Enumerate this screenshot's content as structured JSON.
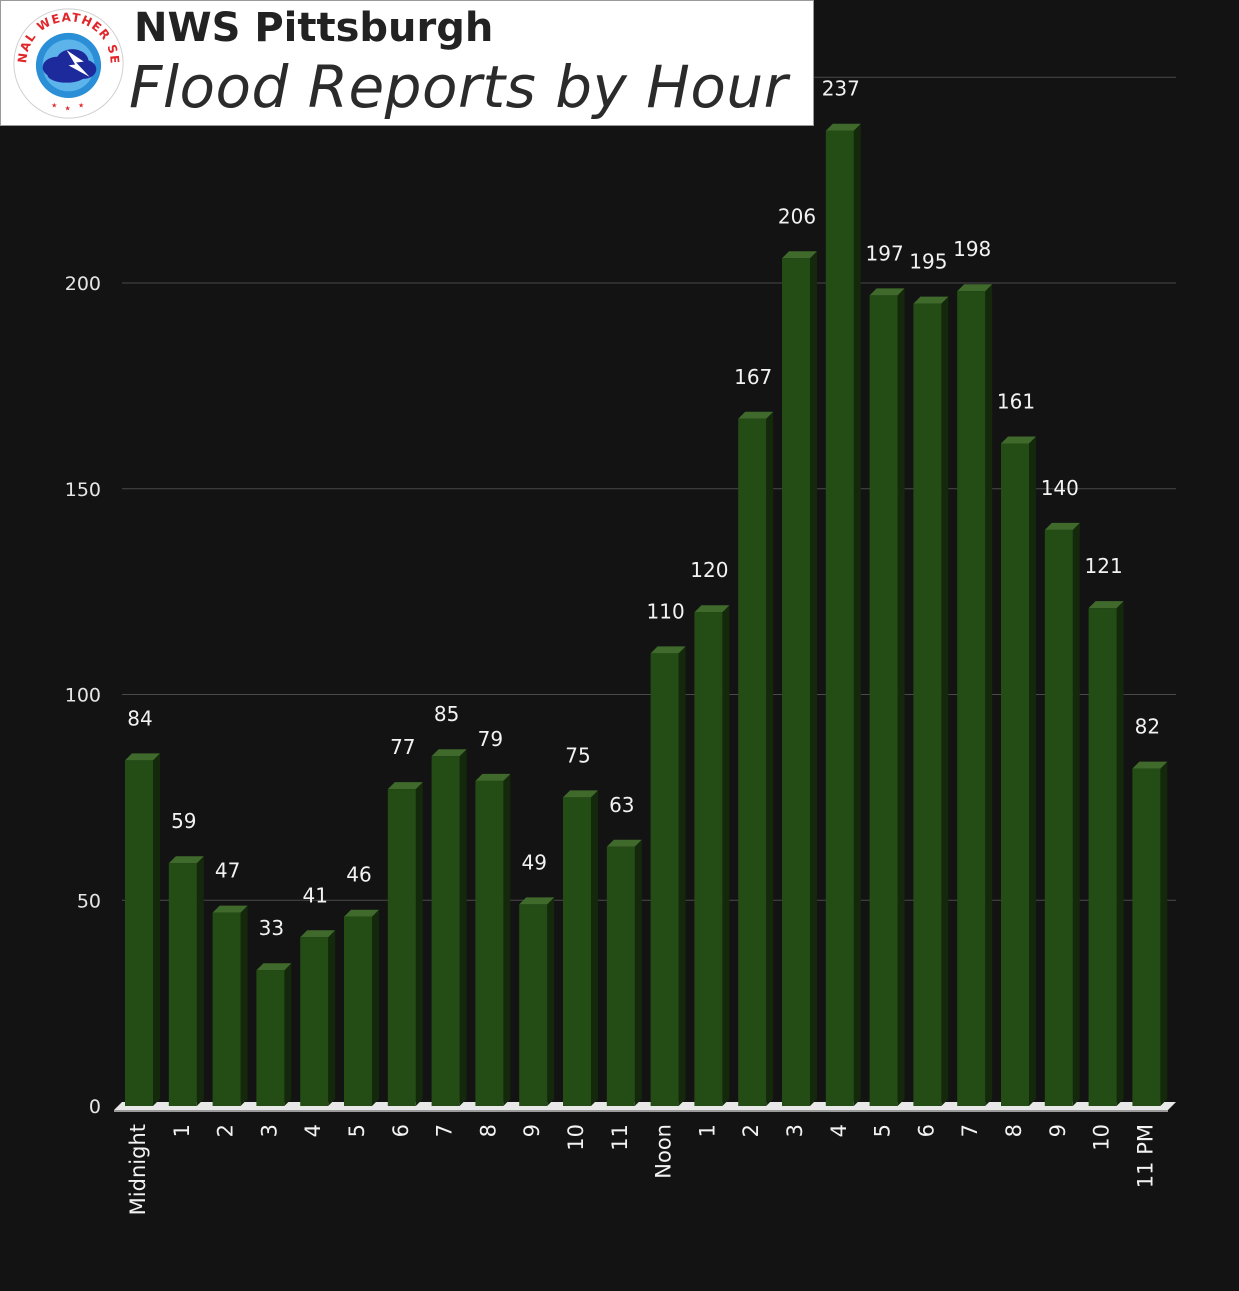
{
  "header": {
    "org_name": "NWS Pittsburgh",
    "logo_icon": "nws-logo-icon",
    "logo_text": "NATIONAL WEATHER SERVICE"
  },
  "chart_data": {
    "type": "bar",
    "title": "Flood Reports by Hour",
    "xlabel": "",
    "ylabel": "",
    "ylim": [
      0,
      250
    ],
    "yticks": [
      0,
      50,
      100,
      150,
      200
    ],
    "grid": true,
    "legend": "none",
    "bar_color": "#244d16",
    "bar_top_color": "#3f6a2c",
    "bar_side_color": "#14280c",
    "categories": [
      "Midnight",
      "1",
      "2",
      "3",
      "4",
      "5",
      "6",
      "7",
      "8",
      "9",
      "10",
      "11",
      "Noon",
      "1",
      "2",
      "3",
      "4",
      "5",
      "6",
      "7",
      "8",
      "9",
      "10",
      "11 PM"
    ],
    "values": [
      84,
      59,
      47,
      33,
      41,
      46,
      77,
      85,
      79,
      49,
      75,
      63,
      110,
      120,
      167,
      206,
      237,
      197,
      195,
      198,
      161,
      140,
      121,
      82
    ]
  }
}
